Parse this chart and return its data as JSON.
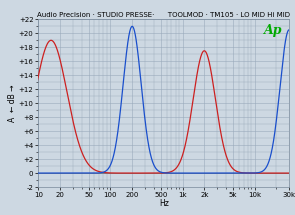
{
  "title": "Audio Precision · STUDIO PRESSE·      TOOLMOD · TM105 · LO MID Hi MID",
  "xlabel": "Hz",
  "ylabel": "A  ← dB →",
  "xlim_log": [
    10,
    30000
  ],
  "ylim": [
    -2,
    22
  ],
  "yticks": [
    -2,
    0,
    2,
    4,
    6,
    8,
    10,
    12,
    14,
    16,
    18,
    20,
    22
  ],
  "ytick_labels": [
    "-2",
    "0",
    "+2",
    "+4",
    "+6",
    "+8",
    "+10",
    "+12",
    "+14",
    "+16",
    "+18",
    "+20",
    "+22"
  ],
  "xtick_vals": [
    10,
    20,
    50,
    100,
    200,
    500,
    1000,
    2000,
    5000,
    10000,
    30000
  ],
  "xtick_labels": [
    "10",
    "20",
    "50",
    "100",
    "200",
    "500",
    "1k",
    "2k",
    "5k",
    "10k",
    "30k"
  ],
  "red_peak1_freq": 15,
  "red_peak1_amp": 19.0,
  "red_peak1_q": 4.5,
  "red_peak2_freq": 2000,
  "red_peak2_amp": 17.5,
  "red_peak2_q": 6.5,
  "blue_peak1_freq": 200,
  "blue_peak1_amp": 21.0,
  "blue_peak1_q": 8.0,
  "blue_peak2_freq": 30000,
  "blue_peak2_amp": 20.5,
  "blue_peak2_q": 8.0,
  "red_color": "#cc2020",
  "blue_color": "#1a4fcc",
  "bg_color": "#cdd8e2",
  "grid_color": "#9aaabb",
  "ap_color": "#00aa00",
  "title_fontsize": 5.0,
  "tick_fontsize": 5.0,
  "label_fontsize": 5.5
}
